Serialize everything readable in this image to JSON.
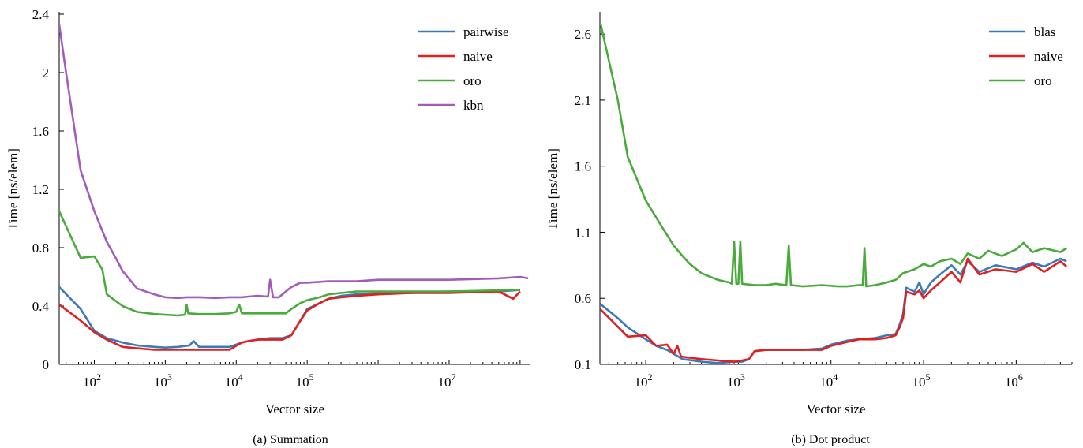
{
  "chart_data": [
    {
      "type": "line",
      "caption": "(a) Summation",
      "xlabel": "Vector size",
      "ylabel": "Time [ns/elem]",
      "x_scale": "log",
      "xlim": [
        32,
        140000000
      ],
      "ylim": [
        0,
        2.4
      ],
      "yticks": [
        0,
        0.4,
        0.8,
        1.2,
        1.6,
        2,
        2.4
      ],
      "ytick_labels": [
        "0",
        "0.4",
        "0.8",
        "1.2",
        "1.6",
        "2",
        "2.4"
      ],
      "xticks": [
        100,
        1000,
        10000,
        100000,
        10000000
      ],
      "xtick_labels": [
        {
          "base": "10",
          "exp": "2"
        },
        {
          "base": "10",
          "exp": "3"
        },
        {
          "base": "10",
          "exp": "4"
        },
        {
          "base": "10",
          "exp": "5"
        },
        {
          "base": "10",
          "exp": "7"
        }
      ],
      "legend_position": "top-right",
      "series": [
        {
          "name": "pairwise",
          "color": "#3a7ab8",
          "x": [
            32,
            64,
            100,
            150,
            250,
            400,
            700,
            1000,
            1500,
            2200,
            2500,
            3000,
            5000,
            8000,
            12000,
            15000,
            20000,
            30000,
            45000,
            60000,
            80000,
            100000,
            150000,
            200000,
            300000,
            500000,
            1000000,
            3000000,
            10000000,
            50000000,
            100000000
          ],
          "y": [
            0.53,
            0.38,
            0.23,
            0.18,
            0.15,
            0.13,
            0.12,
            0.115,
            0.12,
            0.13,
            0.16,
            0.12,
            0.12,
            0.12,
            0.15,
            0.16,
            0.17,
            0.18,
            0.18,
            0.2,
            0.3,
            0.38,
            0.42,
            0.45,
            0.47,
            0.48,
            0.49,
            0.49,
            0.5,
            0.5,
            0.51
          ]
        },
        {
          "name": "naive",
          "color": "#e02020",
          "x": [
            32,
            64,
            100,
            150,
            250,
            400,
            700,
            1000,
            1500,
            2200,
            3000,
            5000,
            8000,
            12000,
            15000,
            20000,
            30000,
            45000,
            60000,
            80000,
            100000,
            150000,
            200000,
            300000,
            500000,
            1000000,
            3000000,
            10000000,
            50000000,
            80000000,
            100000000
          ],
          "y": [
            0.41,
            0.3,
            0.22,
            0.17,
            0.12,
            0.11,
            0.1,
            0.1,
            0.1,
            0.1,
            0.1,
            0.1,
            0.1,
            0.15,
            0.16,
            0.17,
            0.17,
            0.17,
            0.2,
            0.3,
            0.37,
            0.42,
            0.45,
            0.46,
            0.47,
            0.48,
            0.49,
            0.49,
            0.5,
            0.45,
            0.5
          ]
        },
        {
          "name": "oro",
          "color": "#4aaa3c",
          "x": [
            32,
            64,
            100,
            130,
            150,
            250,
            400,
            700,
            1000,
            1500,
            1900,
            2000,
            2100,
            3000,
            5000,
            8000,
            10000,
            11000,
            12000,
            15000,
            20000,
            30000,
            40000,
            50000,
            60000,
            80000,
            100000,
            150000,
            200000,
            300000,
            500000,
            1000000,
            10000000,
            100000000
          ],
          "y": [
            1.05,
            0.73,
            0.74,
            0.65,
            0.48,
            0.4,
            0.36,
            0.345,
            0.34,
            0.335,
            0.34,
            0.41,
            0.35,
            0.345,
            0.345,
            0.35,
            0.36,
            0.41,
            0.35,
            0.35,
            0.35,
            0.35,
            0.35,
            0.35,
            0.38,
            0.42,
            0.44,
            0.46,
            0.48,
            0.49,
            0.5,
            0.5,
            0.5,
            0.51
          ]
        },
        {
          "name": "kbn",
          "color": "#a35cbc",
          "x": [
            32,
            40,
            64,
            100,
            150,
            200,
            250,
            400,
            700,
            1000,
            1500,
            2000,
            3000,
            5000,
            8000,
            12000,
            15000,
            20000,
            28000,
            30000,
            33000,
            40000,
            50000,
            60000,
            80000,
            100000,
            200000,
            500000,
            1000000,
            10000000,
            50000000,
            100000000,
            130000000
          ],
          "y": [
            2.33,
            2.0,
            1.33,
            1.05,
            0.84,
            0.73,
            0.64,
            0.52,
            0.48,
            0.46,
            0.455,
            0.46,
            0.46,
            0.455,
            0.46,
            0.46,
            0.465,
            0.47,
            0.465,
            0.58,
            0.46,
            0.46,
            0.5,
            0.53,
            0.56,
            0.56,
            0.57,
            0.57,
            0.58,
            0.58,
            0.59,
            0.6,
            0.59
          ]
        }
      ]
    },
    {
      "type": "line",
      "caption": "(b) Dot product",
      "xlabel": "Vector size",
      "ylabel": "Time [ns/elem]",
      "x_scale": "log",
      "xlim": [
        32,
        4000000
      ],
      "ylim": [
        0.1,
        2.75
      ],
      "yticks": [
        0.1,
        0.6,
        1.1,
        1.6,
        2.1,
        2.6
      ],
      "ytick_labels": [
        "0.1",
        "0.6",
        "1.1",
        "1.6",
        "2.1",
        "2.6"
      ],
      "xticks": [
        100,
        1000,
        10000,
        100000,
        1000000
      ],
      "xtick_labels": [
        {
          "base": "10",
          "exp": "2"
        },
        {
          "base": "10",
          "exp": "3"
        },
        {
          "base": "10",
          "exp": "4"
        },
        {
          "base": "10",
          "exp": "5"
        },
        {
          "base": "10",
          "exp": "6"
        }
      ],
      "legend_position": "top-right",
      "series": [
        {
          "name": "blas",
          "color": "#3a7ab8",
          "x": [
            32,
            50,
            64,
            100,
            130,
            170,
            250,
            400,
            600,
            900,
            1100,
            1300,
            1500,
            2000,
            3000,
            5000,
            8000,
            10000,
            15000,
            20000,
            30000,
            40000,
            50000,
            55000,
            60000,
            65000,
            80000,
            90000,
            100000,
            120000,
            150000,
            200000,
            250000,
            300000,
            400000,
            600000,
            1000000,
            1500000,
            2000000,
            3000000,
            3500000
          ],
          "y": [
            0.56,
            0.45,
            0.38,
            0.29,
            0.24,
            0.21,
            0.14,
            0.12,
            0.11,
            0.12,
            0.12,
            0.14,
            0.2,
            0.21,
            0.21,
            0.21,
            0.22,
            0.25,
            0.28,
            0.29,
            0.3,
            0.32,
            0.33,
            0.4,
            0.48,
            0.68,
            0.65,
            0.72,
            0.63,
            0.72,
            0.78,
            0.85,
            0.78,
            0.88,
            0.8,
            0.85,
            0.82,
            0.87,
            0.84,
            0.9,
            0.88
          ]
        },
        {
          "name": "naive",
          "color": "#e02020",
          "x": [
            32,
            64,
            100,
            130,
            170,
            200,
            220,
            240,
            300,
            400,
            600,
            900,
            1100,
            1300,
            1500,
            2000,
            3000,
            5000,
            8000,
            10000,
            15000,
            20000,
            30000,
            40000,
            50000,
            55000,
            60000,
            65000,
            80000,
            90000,
            100000,
            120000,
            150000,
            200000,
            250000,
            300000,
            400000,
            600000,
            1000000,
            1500000,
            2000000,
            3000000,
            3500000
          ],
          "y": [
            0.52,
            0.31,
            0.32,
            0.24,
            0.25,
            0.18,
            0.24,
            0.16,
            0.15,
            0.14,
            0.13,
            0.12,
            0.13,
            0.14,
            0.2,
            0.21,
            0.21,
            0.21,
            0.21,
            0.24,
            0.27,
            0.29,
            0.29,
            0.3,
            0.32,
            0.38,
            0.45,
            0.65,
            0.63,
            0.66,
            0.6,
            0.66,
            0.72,
            0.8,
            0.72,
            0.9,
            0.78,
            0.82,
            0.8,
            0.86,
            0.8,
            0.88,
            0.84
          ]
        },
        {
          "name": "oro",
          "color": "#4aaa3c",
          "x": [
            32,
            50,
            64,
            100,
            150,
            200,
            250,
            300,
            400,
            600,
            800,
            850,
            900,
            950,
            1000,
            1050,
            1100,
            1500,
            2000,
            2500,
            3300,
            3500,
            3700,
            5000,
            8000,
            12000,
            15000,
            20000,
            22000,
            23000,
            24000,
            30000,
            40000,
            50000,
            60000,
            80000,
            100000,
            120000,
            150000,
            200000,
            250000,
            300000,
            400000,
            500000,
            700000,
            1000000,
            1200000,
            1500000,
            2000000,
            3000000,
            3500000
          ],
          "y": [
            2.7,
            2.1,
            1.67,
            1.34,
            1.14,
            1.0,
            0.92,
            0.86,
            0.79,
            0.74,
            0.72,
            0.71,
            1.03,
            0.71,
            0.71,
            1.03,
            0.71,
            0.7,
            0.7,
            0.71,
            0.7,
            1.0,
            0.7,
            0.69,
            0.7,
            0.69,
            0.69,
            0.7,
            0.7,
            0.98,
            0.69,
            0.7,
            0.72,
            0.74,
            0.79,
            0.82,
            0.86,
            0.84,
            0.88,
            0.9,
            0.86,
            0.94,
            0.9,
            0.96,
            0.92,
            0.97,
            1.02,
            0.95,
            0.98,
            0.95,
            0.98
          ]
        }
      ]
    }
  ]
}
